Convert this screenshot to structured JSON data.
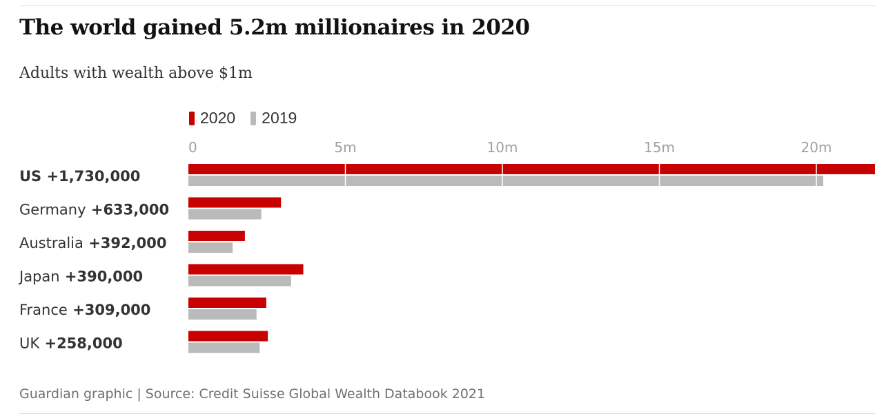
{
  "title": "The world gained 5.2m millionaires in 2020",
  "subtitle": "Adults with wealth above $1m",
  "source": "Guardian graphic | Source: Credit Suisse Global Wealth Databook 2021",
  "colors": {
    "series_2020": "#c70000",
    "series_2019": "#bababa",
    "gridline": "#ffffff"
  },
  "chart_data": {
    "type": "bar",
    "orientation": "horizontal",
    "title": "The world gained 5.2m millionaires in 2020",
    "subtitle": "Adults with wealth above $1m",
    "categories": [
      "US",
      "Germany",
      "Australia",
      "Japan",
      "France",
      "UK"
    ],
    "category_changes": [
      "+1,730,000",
      "+633,000",
      "+392,000",
      "+390,000",
      "+309,000",
      "+258,000"
    ],
    "series": [
      {
        "name": "2020",
        "color": "#c70000",
        "values": [
          21.95,
          2.95,
          1.8,
          3.66,
          2.48,
          2.53
        ]
      },
      {
        "name": "2019",
        "color": "#bababa",
        "values": [
          20.22,
          2.32,
          1.41,
          3.27,
          2.17,
          2.27
        ]
      }
    ],
    "x_ticks": [
      0,
      5,
      10,
      15,
      20
    ],
    "x_tick_labels": [
      "0",
      "5m",
      "10m",
      "15m",
      "20m"
    ],
    "xlim": [
      0,
      22
    ],
    "unit": "m",
    "legend_position": "top-left",
    "grid": true
  }
}
